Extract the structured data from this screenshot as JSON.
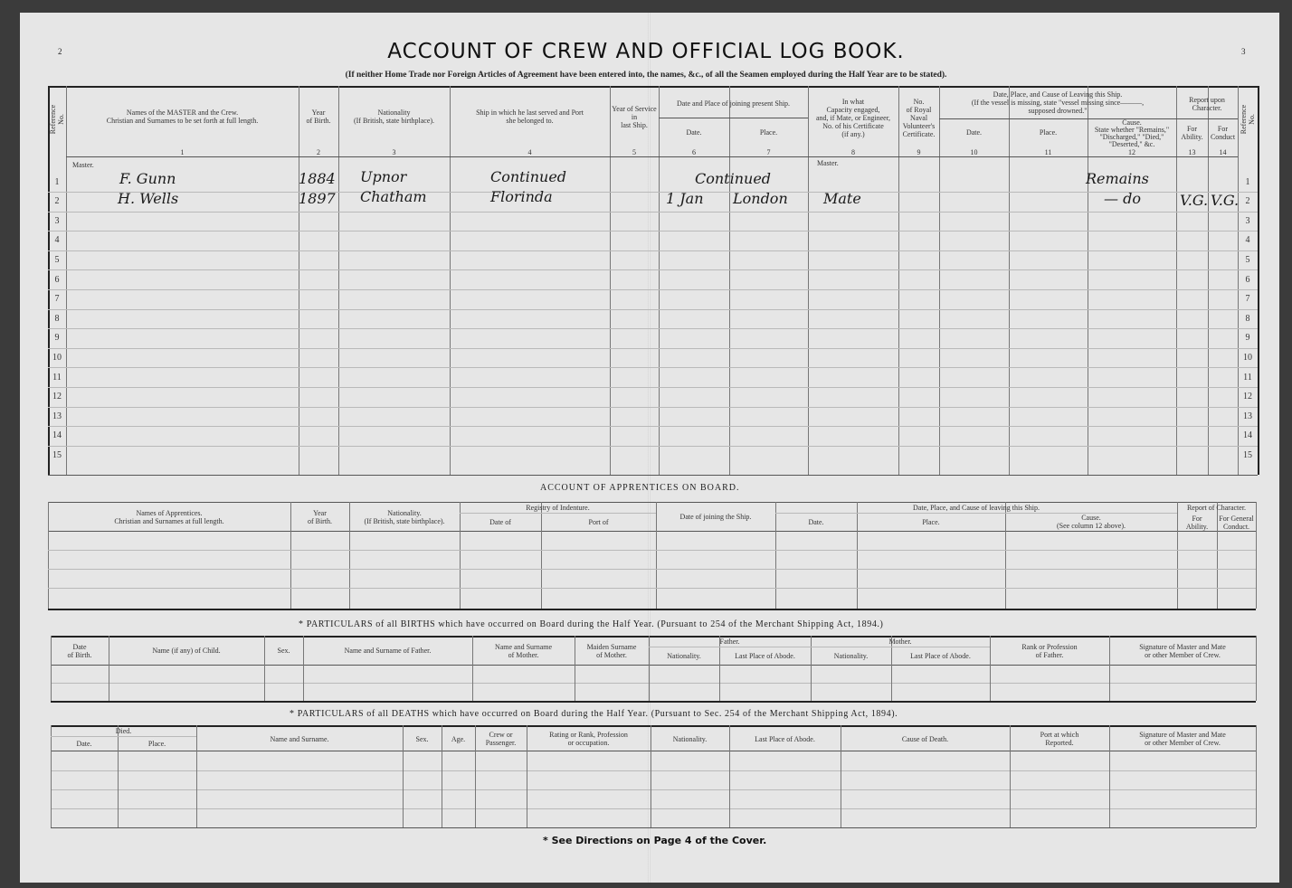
{
  "page": {
    "left_page_number": "2",
    "right_page_number": "3",
    "title": "ACCOUNT OF CREW AND OFFICIAL LOG BOOK.",
    "subtitle": "(If neither Home Trade nor Foreign Articles of Agreement have been entered into, the names, &c., of all the Seamen employed during the Half Year are to be stated).",
    "footer": "* See Directions on Page 4 of the Cover."
  },
  "crew": {
    "headers": {
      "ref": "Reference No.",
      "names": "Names of the MASTER and the Crew.\nChristian and Surnames to be set forth at full length.",
      "year": "Year\nof Birth.",
      "nationality": "Nationality\n(If British, state birthplace).",
      "last_ship": "Ship in which he last served and Port\nshe belonged to.",
      "year_service": "Year of Service\nin\nlast Ship.",
      "joining": "Date and Place of joining present Ship.",
      "join_date": "Date.",
      "join_place": "Place.",
      "capacity": "In what\nCapacity engaged,\nand, if Mate, or Engineer,\nNo. of his Certificate\n(if any.)",
      "rnv": "No.\nof Royal\nNaval\nVolunteer's\nCertificate.",
      "leaving": "Date, Place, and Cause of Leaving this Ship.\n(If the vessel is missing, state \"vessel missing since———,\nsupposed drowned.\"",
      "leave_date": "Date.",
      "leave_place": "Place.",
      "cause": "Cause.\nState whether \"Remains,\"\n\"Discharged,\" \"Died,\"\n\"Deserted,\" &c.",
      "character": "Report upon\nCharacter.",
      "ability": "For\nAbility.",
      "conduct": "For\nConduct",
      "ref_right": "Reference No."
    },
    "column_numbers": [
      "1",
      "2",
      "3",
      "4",
      "5",
      "6",
      "7",
      "8",
      "9",
      "10",
      "11",
      "12",
      "13",
      "14"
    ],
    "row_numbers": [
      "1",
      "2",
      "3",
      "4",
      "5",
      "6",
      "7",
      "8",
      "9",
      "10",
      "11",
      "12",
      "13",
      "14",
      "15"
    ],
    "master_label": "Master.",
    "capacity_master_label": "Master.",
    "rows": [
      {
        "name": "F. Gunn",
        "year": "1884",
        "nationality": "Upnor",
        "last_ship": "Continued",
        "joining": "Continued",
        "capacity": "",
        "cause": "Remains",
        "ability": "",
        "conduct": ""
      },
      {
        "name": "H. Wells",
        "year": "1897",
        "nationality": "Chatham",
        "last_ship": "Florinda",
        "join_date": "1 Jan",
        "join_place": "London",
        "capacity": "Mate",
        "cause": "— do",
        "ability": "V.G.",
        "conduct": "V.G."
      }
    ]
  },
  "apprentices": {
    "title": "ACCOUNT OF APPRENTICES ON BOARD.",
    "headers": {
      "names": "Names of Apprentices.\nChristian and Surnames at full length.",
      "year": "Year\nof Birth.",
      "nationality": "Nationality.\n(If British, state birthplace).",
      "registry": "Registry of Indenture.",
      "date_of": "Date of",
      "port_of": "Port of",
      "joining": "Date of joining the Ship.",
      "leaving": "Date, Place, and Cause of leaving this Ship.",
      "date": "Date.",
      "place": "Place.",
      "cause": "Cause.\n(See column 12 above).",
      "character": "Report of Character.",
      "ability": "For\nAbility.",
      "conduct": "For General\nConduct."
    }
  },
  "births": {
    "title": "* PARTICULARS of all BIRTHS which have occurred on Board during the Half Year.     (Pursuant to 254 of the Merchant Shipping Act, 1894.)",
    "headers": {
      "date": "Date\nof Birth.",
      "child": "Name (if any) of Child.",
      "sex": "Sex.",
      "father_name": "Name and Surname of Father.",
      "mother_name": "Name and Surname\nof Mother.",
      "maiden": "Maiden Surname\nof Mother.",
      "father": "Father.",
      "father_nat": "Nationality.",
      "father_abode": "Last Place of Abode.",
      "mother": "Mother.",
      "mother_nat": "Nationality.",
      "mother_abode": "Last Place of Abode.",
      "rank": "Rank or Profession\nof Father.",
      "signature": "Signature of Master and Mate\nor other Member of Crew."
    }
  },
  "deaths": {
    "title": "* PARTICULARS of all DEATHS which have occurred on Board during the Half Year.     (Pursuant to Sec. 254 of the Merchant Shipping Act, 1894).",
    "headers": {
      "died": "Died.",
      "date": "Date.",
      "place": "Place.",
      "name": "Name and Surname.",
      "sex": "Sex.",
      "age": "Age.",
      "crew": "Crew or\nPassenger.",
      "rating": "Rating or Rank, Profession\nor occupation.",
      "nationality": "Nationality.",
      "abode": "Last Place of Abode.",
      "cause": "Cause of Death.",
      "port": "Port at which\nReported.",
      "signature": "Signature of Master and Mate\nor other Member of Crew."
    }
  }
}
